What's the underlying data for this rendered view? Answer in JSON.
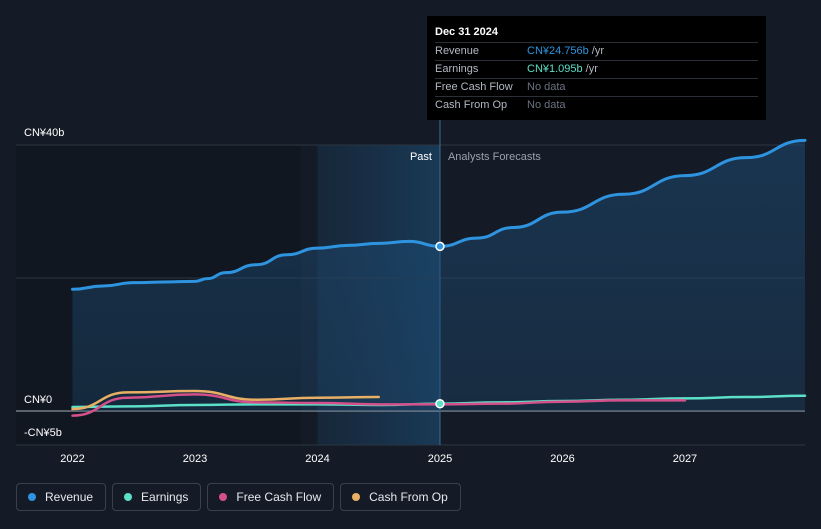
{
  "chart_data": {
    "type": "line",
    "currency_unit": "CN¥ billions",
    "y_tick_labels": [
      "CN¥40b",
      "CN¥0",
      "-CN¥5b"
    ],
    "y_tick_values": [
      40,
      0,
      -5
    ],
    "ylim": [
      -5,
      40
    ],
    "xlim": [
      2021.8,
      2027.98
    ],
    "x_tick_labels": [
      "2022",
      "2023",
      "2024",
      "2025",
      "2026",
      "2027"
    ],
    "x_tick_values": [
      2022,
      2023,
      2024,
      2025,
      2026,
      2027
    ],
    "past_label": "Past",
    "forecast_label": "Analysts Forecasts",
    "divider_x": 2025.0,
    "highlight_start_x": 2024.0,
    "series": [
      {
        "name": "Revenue",
        "color": "#2e94e0",
        "x": [
          2022.0,
          2022.25,
          2022.5,
          2022.75,
          2023.0,
          2023.1,
          2023.25,
          2023.5,
          2023.75,
          2024.0,
          2024.25,
          2024.5,
          2024.75,
          2025.0,
          2025.3,
          2025.6,
          2026.0,
          2026.5,
          2027.0,
          2027.5,
          2027.98
        ],
        "values": [
          18.3,
          18.8,
          19.3,
          19.4,
          19.5,
          19.9,
          20.8,
          22.0,
          23.5,
          24.5,
          24.9,
          25.2,
          25.5,
          24.756,
          26.0,
          27.6,
          29.9,
          32.6,
          35.4,
          38.1,
          40.7
        ]
      },
      {
        "name": "Earnings",
        "color": "#5ce0c7",
        "x": [
          2022.0,
          2022.5,
          2023.0,
          2023.5,
          2024.0,
          2024.5,
          2025.0,
          2025.5,
          2026.0,
          2026.5,
          2027.0,
          2027.5,
          2027.98
        ],
        "values": [
          0.6,
          0.7,
          0.9,
          1.0,
          1.0,
          0.9,
          1.095,
          1.3,
          1.5,
          1.7,
          1.9,
          2.1,
          2.3
        ]
      },
      {
        "name": "Free Cash Flow",
        "color": "#d4508a",
        "x": [
          2022.0,
          2022.45,
          2023.0,
          2023.5,
          2024.0,
          2024.5,
          2025.0,
          2025.5,
          2026.0,
          2026.5,
          2027.0
        ],
        "values": [
          -0.7,
          2.0,
          2.5,
          1.3,
          1.2,
          1.0,
          1.0,
          1.1,
          1.4,
          1.6,
          1.6
        ]
      },
      {
        "name": "Cash From Op",
        "color": "#e8b064",
        "x": [
          2022.0,
          2022.45,
          2023.0,
          2023.5,
          2024.0,
          2024.5
        ],
        "values": [
          0.3,
          2.8,
          3.0,
          1.7,
          2.0,
          2.1
        ]
      }
    ]
  },
  "tooltip": {
    "date": "Dec 31 2024",
    "rows": [
      {
        "label": "Revenue",
        "value": "CN¥24.756b",
        "unit": "/yr",
        "color": "#2e94e0"
      },
      {
        "label": "Earnings",
        "value": "CN¥1.095b",
        "unit": "/yr",
        "color": "#5ce0c7"
      },
      {
        "label": "Free Cash Flow",
        "value": "No data",
        "unit": ""
      },
      {
        "label": "Cash From Op",
        "value": "No data",
        "unit": ""
      }
    ]
  },
  "legend": [
    {
      "label": "Revenue",
      "color": "#2e94e0"
    },
    {
      "label": "Earnings",
      "color": "#5ce0c7"
    },
    {
      "label": "Free Cash Flow",
      "color": "#d4508a"
    },
    {
      "label": "Cash From Op",
      "color": "#e8b064"
    }
  ]
}
